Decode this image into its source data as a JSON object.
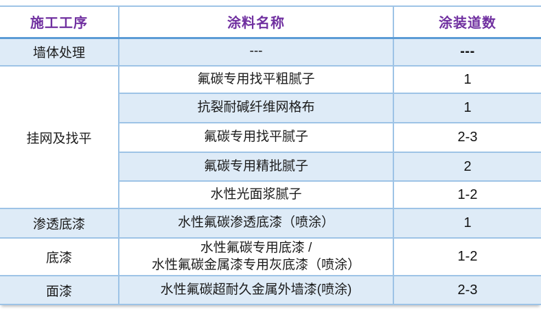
{
  "table": {
    "headers": [
      "施工工序",
      "涂料名称",
      "涂装道数"
    ],
    "rows": [
      {
        "process": "墙体处理",
        "coating": "---",
        "passes": "---"
      },
      {
        "process": "挂网及找平",
        "coating": "氟碳专用找平粗腻子",
        "passes": "1"
      },
      {
        "coating": "抗裂耐碱纤维网格布",
        "passes": "1"
      },
      {
        "coating": "氟碳专用找平腻子",
        "passes": "2-3"
      },
      {
        "coating": "氟碳专用精批腻子",
        "passes": "2"
      },
      {
        "coating": "水性光面浆腻子",
        "passes": "1-2"
      },
      {
        "process": "渗透底漆",
        "coating": "水性氟碳渗透底漆（喷涂）",
        "passes": "1"
      },
      {
        "process": "底漆",
        "coating_line1": "水性氟碳专用底漆 /",
        "coating_line2": "水性氟碳金属漆专用灰底漆（喷涂）",
        "passes": "1-2"
      },
      {
        "process": "面漆",
        "coating": "水性氟碳超耐久金属外墙漆(喷涂)",
        "passes": "2-3"
      }
    ],
    "colors": {
      "header_text": "#7030A0",
      "band_fill": "#DEEBF7",
      "border_light": "#9DC3E6",
      "border_accent": "#5B9BD5"
    }
  }
}
